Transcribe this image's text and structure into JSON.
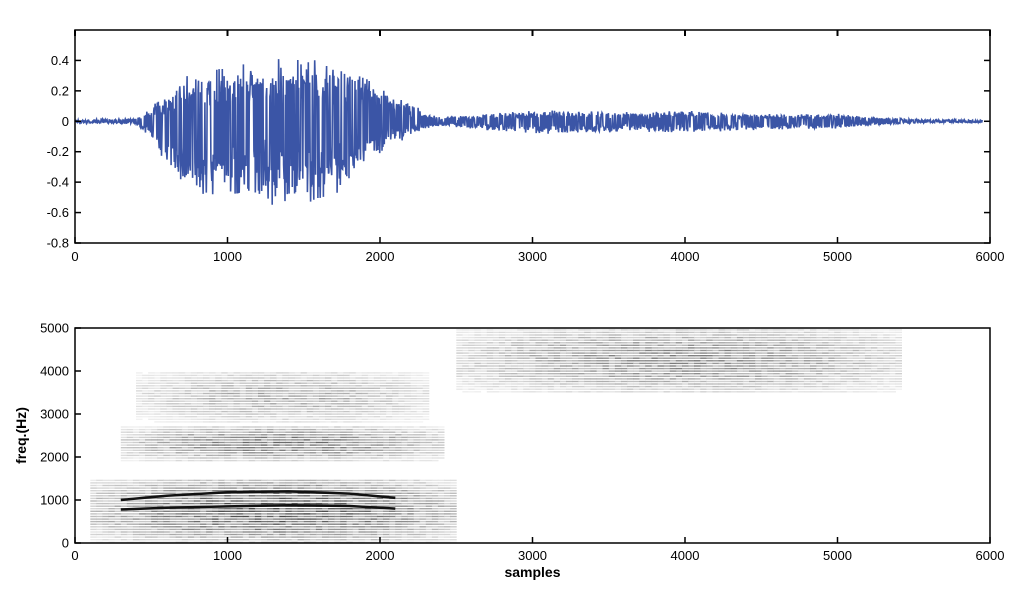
{
  "chart_data": [
    {
      "type": "line",
      "title": "",
      "xlabel": "",
      "ylabel": "",
      "xlim": [
        0,
        6000
      ],
      "ylim": [
        -0.8,
        0.6
      ],
      "x_ticks": [
        0,
        1000,
        2000,
        3000,
        4000,
        5000,
        6000
      ],
      "y_ticks": [
        -0.8,
        -0.6,
        -0.4,
        -0.2,
        0,
        0.2,
        0.4
      ],
      "y_tick_labels": [
        "-0.8",
        "-0.6",
        "-0.4",
        "-0.2",
        "0",
        "0.2",
        "0.4"
      ],
      "grid": false,
      "line_color": "#3b55a6",
      "series": [
        {
          "name": "",
          "x": [
            0,
            400,
            500,
            600,
            700,
            800,
            900,
            1000,
            1100,
            1200,
            1300,
            1400,
            1500,
            1600,
            1700,
            1800,
            1900,
            2000,
            2100,
            2200,
            2300,
            2400,
            2600,
            2800,
            3000,
            3200,
            3400,
            3600,
            3800,
            4000,
            4200,
            4400,
            4600,
            4800,
            5000,
            5200,
            5400,
            5600,
            5800,
            5950
          ],
          "upper_envelope": [
            0.01,
            0.02,
            0.1,
            0.18,
            0.28,
            0.34,
            0.36,
            0.38,
            0.4,
            0.42,
            0.44,
            0.43,
            0.42,
            0.42,
            0.4,
            0.38,
            0.32,
            0.25,
            0.18,
            0.12,
            0.06,
            0.03,
            0.04,
            0.06,
            0.07,
            0.08,
            0.07,
            0.06,
            0.07,
            0.07,
            0.06,
            0.05,
            0.05,
            0.05,
            0.05,
            0.03,
            0.02,
            0.01,
            0.01,
            0.01
          ],
          "lower_envelope": [
            -0.01,
            -0.02,
            -0.12,
            -0.3,
            -0.42,
            -0.48,
            -0.5,
            -0.52,
            -0.54,
            -0.55,
            -0.56,
            -0.55,
            -0.56,
            -0.55,
            -0.52,
            -0.44,
            -0.3,
            -0.22,
            -0.15,
            -0.1,
            -0.05,
            -0.03,
            -0.05,
            -0.07,
            -0.08,
            -0.09,
            -0.08,
            -0.07,
            -0.07,
            -0.08,
            -0.07,
            -0.06,
            -0.06,
            -0.05,
            -0.05,
            -0.03,
            -0.02,
            -0.01,
            -0.01,
            -0.01
          ]
        }
      ]
    },
    {
      "type": "heatmap",
      "title": "",
      "xlabel": "samples",
      "ylabel": "freq.(Hz)",
      "xlim": [
        0,
        6000
      ],
      "ylim": [
        0,
        5000
      ],
      "x_ticks": [
        0,
        1000,
        2000,
        3000,
        4000,
        5000,
        6000
      ],
      "y_ticks": [
        0,
        1000,
        2000,
        3000,
        4000,
        5000
      ],
      "grid": false,
      "colormap": "gray-reversed",
      "energy_regions": [
        {
          "x": [
            100,
            2500
          ],
          "y": [
            0,
            1500
          ],
          "intensity": 0.85
        },
        {
          "x": [
            300,
            2400
          ],
          "y": [
            1900,
            2700
          ],
          "intensity": 0.7
        },
        {
          "x": [
            400,
            2300
          ],
          "y": [
            2800,
            4000
          ],
          "intensity": 0.45
        },
        {
          "x": [
            2500,
            5400
          ],
          "y": [
            3500,
            5000
          ],
          "intensity": 0.6
        }
      ],
      "formant_tracks": [
        {
          "x": [
            300,
            600,
            1000,
            1400,
            1800,
            2100
          ],
          "y": [
            780,
            820,
            850,
            880,
            860,
            800
          ]
        },
        {
          "x": [
            300,
            600,
            1000,
            1400,
            1800,
            2100
          ],
          "y": [
            1000,
            1100,
            1180,
            1200,
            1150,
            1050
          ]
        }
      ]
    }
  ]
}
